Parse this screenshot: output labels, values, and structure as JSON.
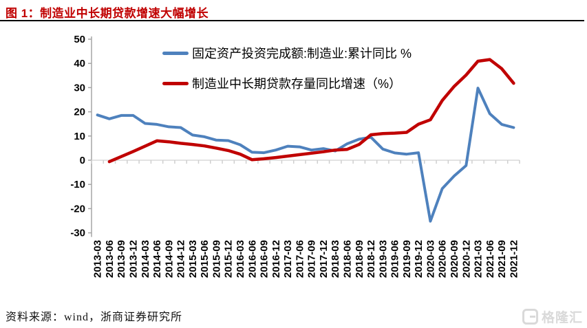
{
  "header": {
    "title": "图 1：制造业中长期贷款增速大幅增长",
    "accent_color": "#C00000"
  },
  "footer": {
    "source": "资料来源：wind，浙商证券研究所",
    "watermark": "格隆汇",
    "watermark_color": "#D9D9D9"
  },
  "chart_data": {
    "type": "line",
    "title": "",
    "xlabel": "",
    "ylabel": "",
    "ylim": [
      -30,
      50
    ],
    "yticks": [
      50,
      40,
      30,
      20,
      10,
      0,
      -10,
      -20,
      -30
    ],
    "grid": "zero-line-only",
    "legend_position": "top-left-inside",
    "axis_color": "#A6A6A6",
    "zero_line_color": "#D9D9D9",
    "tick_color": "#CFCFCF",
    "categories": [
      "2013-03",
      "2013-06",
      "2013-09",
      "2013-12",
      "2014-03",
      "2014-06",
      "2014-09",
      "2014-12",
      "2015-03",
      "2015-06",
      "2015-09",
      "2015-12",
      "2016-03",
      "2016-06",
      "2016-09",
      "2016-12",
      "2017-03",
      "2017-06",
      "2017-09",
      "2017-12",
      "2018-03",
      "2018-06",
      "2018-09",
      "2018-12",
      "2019-03",
      "2019-06",
      "2019-09",
      "2019-12",
      "2020-03",
      "2020-06",
      "2020-09",
      "2020-12",
      "2021-03",
      "2021-06",
      "2021-09",
      "2021-12"
    ],
    "series": [
      {
        "name": "固定资产投资完成额:制造业:累计同比 %",
        "color": "#4E81BD",
        "values": [
          18.7,
          17.1,
          18.5,
          18.5,
          15.2,
          14.8,
          13.8,
          13.5,
          10.4,
          9.7,
          8.3,
          8.1,
          6.4,
          3.3,
          3.1,
          4.2,
          5.8,
          5.5,
          4.2,
          4.8,
          3.8,
          6.8,
          8.7,
          9.5,
          4.6,
          3.0,
          2.5,
          3.1,
          -25.2,
          -11.7,
          -6.5,
          -2.2,
          29.8,
          19.2,
          14.8,
          13.5
        ]
      },
      {
        "name": "制造业中长期贷款存量同比增速（%）",
        "color": "#C00000",
        "values": [
          null,
          -0.6,
          1.5,
          3.6,
          5.8,
          8.0,
          7.6,
          7.0,
          6.5,
          5.9,
          5.0,
          4.0,
          2.5,
          0.2,
          0.6,
          1.1,
          1.7,
          2.3,
          2.9,
          3.5,
          4.2,
          4.5,
          6.5,
          10.5,
          11.0,
          11.2,
          11.5,
          14.9,
          16.7,
          24.7,
          30.5,
          35.2,
          40.9,
          41.6,
          37.8,
          31.8
        ]
      }
    ]
  }
}
